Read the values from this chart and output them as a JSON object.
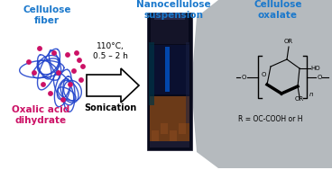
{
  "bg_color": "#ffffff",
  "title_nanocellulose": "Nanocellulose\nsuspension",
  "title_cellulose_oxalate": "Cellulose\noxalate",
  "label_cellulose_fiber": "Cellulose\nfiber",
  "label_oxalic_acid": "Oxalic acid\ndihydrate",
  "label_conditions": "110°C,\n0.5 – 2 h",
  "label_sonication": "Sonication",
  "label_R": "R = OC-COOH or H",
  "blue_color": "#1a3ccc",
  "magenta_color": "#cc1166",
  "text_blue": "#1a78cc",
  "gray_bg": "#b8bcbf",
  "fiber_color": "#2244cc",
  "dot_color": "#cc1166"
}
